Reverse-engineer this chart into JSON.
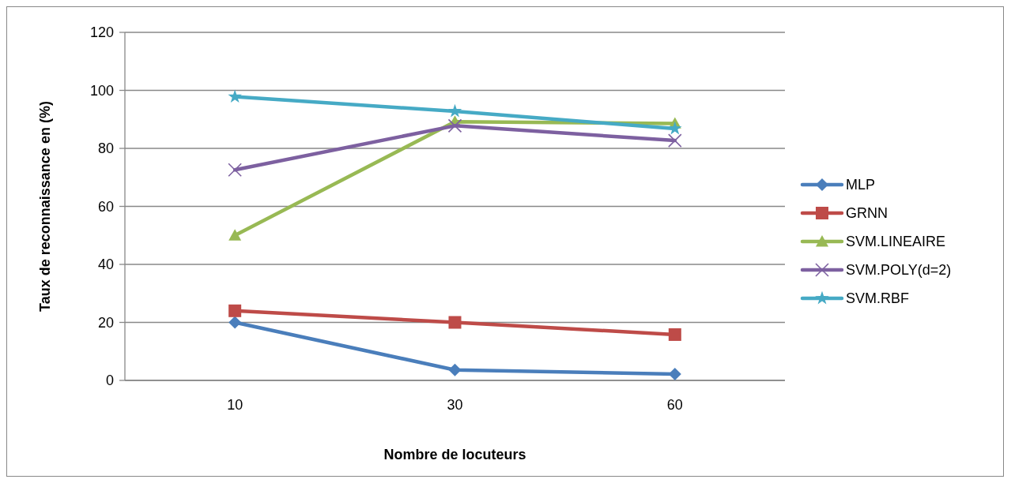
{
  "chart_data": {
    "type": "line",
    "xlabel": "Nombre de locuteurs",
    "ylabel": "Taux de reconnaissance en (%)",
    "categories": [
      "10",
      "30",
      "60"
    ],
    "ylim": [
      0,
      120
    ],
    "yticks": [
      0,
      20,
      40,
      60,
      80,
      100,
      120
    ],
    "grid": "y",
    "legend": "right",
    "series": [
      {
        "name": "MLP",
        "color": "#4a7ebb",
        "marker": "diamond",
        "values": [
          20,
          3.6,
          2.2
        ]
      },
      {
        "name": "GRNN",
        "color": "#be4b48",
        "marker": "square",
        "values": [
          24,
          20,
          15.8
        ]
      },
      {
        "name": "SVM.LINEAIRE",
        "color": "#98b954",
        "marker": "triangle",
        "values": [
          50,
          89.2,
          88.6
        ]
      },
      {
        "name": "SVM.POLY(d=2)",
        "color": "#7d60a0",
        "marker": "cross",
        "values": [
          72.6,
          87.8,
          82.7
        ]
      },
      {
        "name": "SVM.RBF",
        "color": "#46aac5",
        "marker": "star",
        "values": [
          97.8,
          92.8,
          86.8
        ]
      }
    ]
  }
}
